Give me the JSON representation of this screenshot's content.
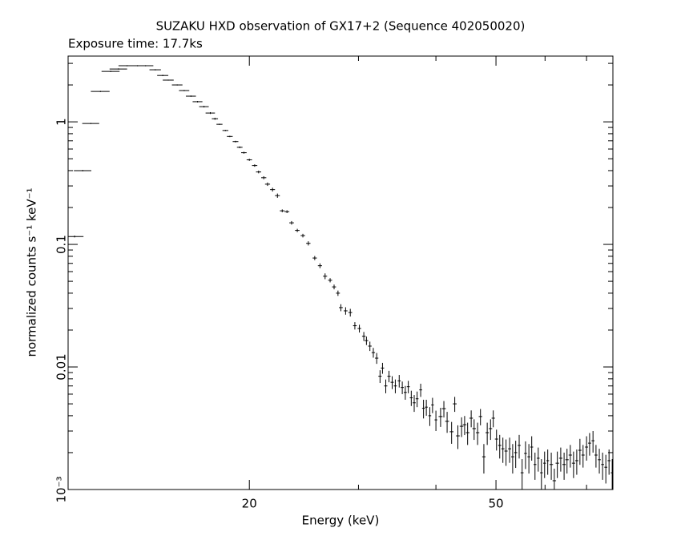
{
  "chart_data": {
    "type": "errorbar",
    "title": "SUZAKU HXD observation of GX17+2 (Sequence 402050020)",
    "subtitle": "Exposure time: 17.7ks",
    "x_label": "Energy (keV)",
    "y_label": "normalized counts s⁻¹ keV⁻¹",
    "xscale": "log",
    "yscale": "log",
    "color": "#000000",
    "xlim": [
      10.2,
      77.2
    ],
    "ylim": [
      0.001,
      3.44
    ],
    "xticks": [
      20,
      50
    ],
    "xminorticks": [
      30,
      40,
      60,
      70
    ],
    "yticks": [
      {
        "value": 0.001,
        "label": "10⁻³"
      },
      0.01,
      0.1,
      1
    ],
    "yminorticks": [
      0.002,
      0.003,
      0.004,
      0.005,
      0.006,
      0.007,
      0.008,
      0.009,
      0.02,
      0.03,
      0.04,
      0.05,
      0.06,
      0.07,
      0.08,
      0.09,
      0.2,
      0.3,
      0.4,
      0.5,
      0.6,
      0.7,
      0.8,
      0.9,
      2,
      3
    ],
    "x": [
      10.45,
      10.77,
      11.1,
      11.5,
      11.95,
      12.3,
      12.7,
      13.2,
      13.6,
      14.1,
      14.5,
      14.8,
      15.3,
      15.7,
      16.1,
      16.5,
      16.9,
      17.3,
      17.6,
      17.9,
      18.3,
      18.6,
      19.0,
      19.3,
      19.6,
      20.0,
      20.4,
      20.7,
      21.1,
      21.4,
      21.8,
      22.2,
      22.6,
      23.0,
      23.4,
      23.9,
      24.4,
      24.9,
      25.5,
      26.0,
      26.5,
      27.0,
      27.4,
      27.8,
      28.1,
      28.6,
      29.1,
      29.6,
      30.1,
      30.6,
      30.9,
      31.3,
      31.7,
      32.1,
      32.5,
      32.8,
      33.2,
      33.6,
      34.0,
      34.4,
      34.9,
      35.3,
      35.7,
      36.1,
      36.5,
      36.9,
      37.3,
      37.8,
      38.2,
      38.6,
      39.1,
      39.5,
      40.0,
      40.7,
      41.2,
      41.7,
      42.4,
      42.9,
      43.4,
      44.0,
      44.5,
      45.0,
      45.6,
      46.1,
      46.7,
      47.2,
      47.8,
      48.4,
      49.0,
      49.5,
      50.1,
      50.7,
      51.3,
      51.9,
      52.6,
      53.2,
      53.8,
      54.5,
      55.1,
      55.8,
      56.5,
      57.1,
      57.8,
      58.5,
      59.2,
      59.9,
      60.6,
      61.4,
      62.1,
      62.8,
      63.6,
      64.4,
      65.1,
      65.9,
      66.7,
      67.5,
      68.3,
      69.1,
      70.0,
      70.8,
      71.7,
      72.5,
      73.4,
      74.3,
      75.2,
      76.1,
      77.0
    ],
    "xerr": [
      0.35,
      0.35,
      0.35,
      0.4,
      0.4,
      0.4,
      0.4,
      0.4,
      0.4,
      0.3,
      0.3,
      0.3,
      0.3,
      0.3,
      0.3,
      0.3,
      0.3,
      0.3,
      0.2,
      0.2,
      0.2,
      0.2,
      0.2,
      0.2,
      0.2,
      0.2,
      0.2,
      0.2,
      0.2,
      0.2,
      0.2,
      0.2,
      0.2,
      0.2,
      0.2,
      0.2,
      0.2,
      0.2,
      0.2,
      0.2,
      0.2,
      0.2,
      0.2,
      0.2,
      0.2,
      0.2,
      0.2,
      0.2,
      0.2,
      0.2,
      0.2,
      0.2,
      0.2,
      0.2,
      0.2,
      0.2,
      0.2,
      0.2,
      0.2,
      0.2,
      0.2,
      0.2,
      0.2,
      0.2,
      0.2,
      0.2,
      0.2,
      0.2,
      0.2,
      0.2,
      0.2,
      0.2,
      0.2,
      0.3,
      0.3,
      0.3,
      0.3,
      0.3,
      0.3,
      0.3,
      0.3,
      0.3,
      0.3,
      0.3,
      0.3,
      0.3,
      0.3,
      0.3,
      0.3,
      0.3,
      0.3,
      0.3,
      0.3,
      0.3,
      0.3,
      0.3,
      0.3,
      0.3,
      0.3,
      0.3,
      0.3,
      0.3,
      0.3,
      0.3,
      0.3,
      0.3,
      0.3,
      0.4,
      0.4,
      0.4,
      0.4,
      0.4,
      0.4,
      0.4,
      0.4,
      0.4,
      0.4,
      0.4,
      0.4,
      0.4,
      0.4,
      0.4,
      0.4,
      0.4,
      0.4,
      0.4,
      0.4
    ],
    "values": [
      0.116,
      0.4,
      0.97,
      1.77,
      2.58,
      2.7,
      2.87,
      2.87,
      2.87,
      2.66,
      2.39,
      2.19,
      2.0,
      1.8,
      1.62,
      1.46,
      1.33,
      1.18,
      1.06,
      0.955,
      0.85,
      0.76,
      0.69,
      0.62,
      0.56,
      0.49,
      0.44,
      0.39,
      0.35,
      0.31,
      0.28,
      0.25,
      0.188,
      0.185,
      0.15,
      0.13,
      0.118,
      0.102,
      0.0774,
      0.067,
      0.055,
      0.051,
      0.045,
      0.04,
      0.0305,
      0.0287,
      0.0278,
      0.0217,
      0.0206,
      0.0178,
      0.0164,
      0.0148,
      0.0131,
      0.0118,
      0.0084,
      0.0098,
      0.007,
      0.0084,
      0.0075,
      0.007,
      0.0077,
      0.0068,
      0.0062,
      0.0069,
      0.0056,
      0.0051,
      0.0055,
      0.0065,
      0.0046,
      0.0047,
      0.004,
      0.0049,
      0.0037,
      0.00394,
      0.00457,
      0.0036,
      0.00296,
      0.005,
      0.00274,
      0.00328,
      0.00338,
      0.00291,
      0.00382,
      0.00314,
      0.00291,
      0.00394,
      0.00185,
      0.00291,
      0.00314,
      0.00382,
      0.00258,
      0.00229,
      0.00215,
      0.00206,
      0.00215,
      0.00185,
      0.002,
      0.00229,
      0.00137,
      0.00197,
      0.00185,
      0.00222,
      0.0016,
      0.0018,
      0.00137,
      0.00164,
      0.00172,
      0.0016,
      0.00118,
      0.00164,
      0.0018,
      0.0016,
      0.00175,
      0.00191,
      0.00164,
      0.00172,
      0.00209,
      0.00191,
      0.00222,
      0.00239,
      0.0025,
      0.00191,
      0.00175,
      0.0016,
      0.00152,
      0.00172,
      0.00137
    ],
    "yerr": [
      0.002,
      0.005,
      0.01,
      0.02,
      0.03,
      0.03,
      0.03,
      0.03,
      0.03,
      0.03,
      0.03,
      0.02,
      0.02,
      0.02,
      0.02,
      0.02,
      0.02,
      0.02,
      0.02,
      0.01,
      0.01,
      0.01,
      0.01,
      0.01,
      0.01,
      0.01,
      0.01,
      0.01,
      0.01,
      0.01,
      0.01,
      0.01,
      0.005,
      0.005,
      0.005,
      0.004,
      0.004,
      0.004,
      0.003,
      0.003,
      0.003,
      0.002,
      0.002,
      0.002,
      0.002,
      0.002,
      0.002,
      0.0015,
      0.0015,
      0.0015,
      0.0013,
      0.0013,
      0.0012,
      0.0012,
      0.001,
      0.001,
      0.0009,
      0.0009,
      0.0009,
      0.0009,
      0.0009,
      0.0008,
      0.0008,
      0.0008,
      0.0008,
      0.0008,
      0.0008,
      0.0008,
      0.0008,
      0.0007,
      0.0007,
      0.0007,
      0.0007,
      0.0007,
      0.0007,
      0.0007,
      0.0006,
      0.0007,
      0.0006,
      0.0006,
      0.0006,
      0.0006,
      0.0006,
      0.0006,
      0.0006,
      0.0006,
      0.0005,
      0.0006,
      0.0006,
      0.0006,
      0.0005,
      0.0005,
      0.0005,
      0.0005,
      0.0005,
      0.0005,
      0.0005,
      0.0005,
      0.0004,
      0.0005,
      0.0005,
      0.0005,
      0.0004,
      0.0004,
      0.0004,
      0.0004,
      0.0004,
      0.0004,
      0.0003,
      0.0004,
      0.0004,
      0.0004,
      0.0004,
      0.0004,
      0.0004,
      0.0004,
      0.0005,
      0.0004,
      0.0005,
      0.0005,
      0.0005,
      0.0004,
      0.0004,
      0.0004,
      0.0004,
      0.0004,
      0.0004
    ]
  }
}
